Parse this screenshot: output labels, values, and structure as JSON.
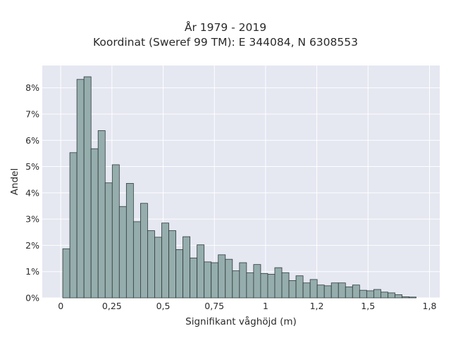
{
  "chart_data": {
    "type": "bar",
    "title_lines": [
      "År 1979 - 2019",
      "Koordinat (Sweref 99 TM): E 344084, N 6308553"
    ],
    "xlabel": "Signifikant våghöjd (m)",
    "ylabel": "Andel",
    "xlim": [
      -0.09,
      1.85
    ],
    "ylim": [
      0,
      0.0885
    ],
    "xticks": [
      0,
      0.25,
      0.5,
      0.75,
      1,
      1.25,
      1.5,
      1.8
    ],
    "xtick_labels": [
      "0",
      "0,25",
      "0,5",
      "0,75",
      "1",
      "1,2",
      "1,5",
      "1,8"
    ],
    "yticks": [
      0,
      0.01,
      0.02,
      0.03,
      0.04,
      0.05,
      0.06,
      0.07,
      0.08
    ],
    "ytick_labels": [
      "0%",
      "1%",
      "2%",
      "3%",
      "4%",
      "5%",
      "6%",
      "7%",
      "8%"
    ],
    "grid": true,
    "bin_start": 0.01,
    "bin_width": 0.0345,
    "values": [
      0.0187,
      0.0553,
      0.0832,
      0.0842,
      0.0568,
      0.0637,
      0.0438,
      0.0507,
      0.0348,
      0.0436,
      0.029,
      0.036,
      0.0256,
      0.0231,
      0.0285,
      0.0256,
      0.0184,
      0.0233,
      0.0152,
      0.0202,
      0.0137,
      0.0134,
      0.0164,
      0.0147,
      0.0103,
      0.0134,
      0.0096,
      0.0127,
      0.0093,
      0.009,
      0.0115,
      0.0096,
      0.0066,
      0.0084,
      0.0057,
      0.007,
      0.0049,
      0.0046,
      0.0057,
      0.0057,
      0.0042,
      0.0049,
      0.0029,
      0.0027,
      0.0032,
      0.0022,
      0.0019,
      0.0012,
      0.0004,
      0.0003
    ],
    "colors": {
      "bar_fill": "#95adad",
      "bar_edge": "#2f3a3a",
      "plot_bg": "#e5e7f1",
      "grid": "#ffffff"
    }
  }
}
